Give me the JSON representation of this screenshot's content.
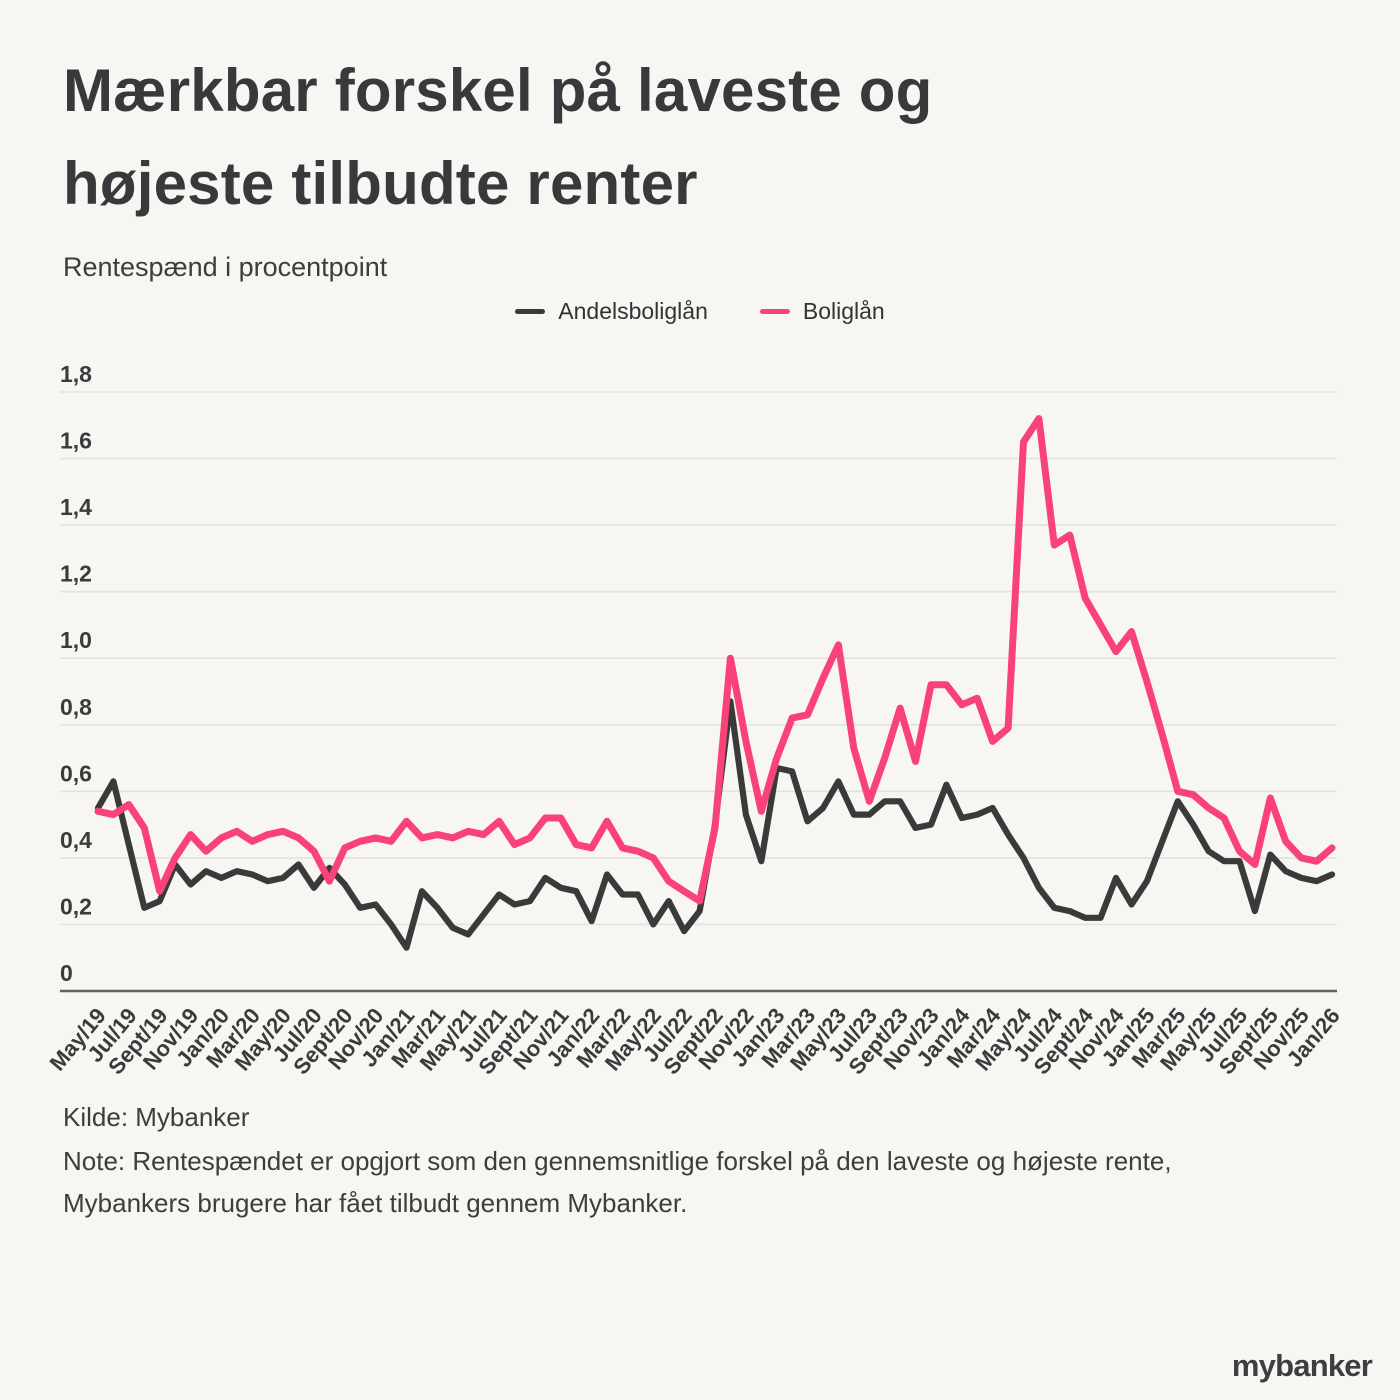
{
  "header": {
    "title_line1": "Mærkbar forskel på laveste og",
    "title_line2": "højeste tilbudte renter",
    "subtitle": "Rentespænd i procentpoint"
  },
  "legend": {
    "items": [
      {
        "label": "Andelsboliglån",
        "color": "#3a3a3a"
      },
      {
        "label": "Boliglån",
        "color": "#f94278"
      }
    ]
  },
  "chart_data": {
    "type": "line",
    "title": "Rentespænd i procentpoint",
    "x_frequency": "monthly",
    "x_tick_labels": [
      "May/19",
      "Jul/19",
      "Sept/19",
      "Nov/19",
      "Jan/20",
      "Mar/20",
      "May/20",
      "Jul/20",
      "Sept/20",
      "Nov/20",
      "Jan/21",
      "Mar/21",
      "May/21",
      "Jul/21",
      "Sept/21",
      "Nov/21",
      "Jan/22",
      "Mar/22",
      "May/22",
      "Jul/22",
      "Sept/22",
      "Nov/22",
      "Jan/23",
      "Mar/23",
      "May/23",
      "Jul/23",
      "Sept/23",
      "Nov/23",
      "Jan/24",
      "Mar/24",
      "May/24",
      "Jul/24",
      "Sept/24",
      "Nov/24",
      "Jan/25",
      "Mar/25",
      "May/25",
      "Jul/25",
      "Sept/25",
      "Nov/25",
      "Jan/26"
    ],
    "y_ticks": [
      "0",
      "0,2",
      "0,4",
      "0,6",
      "0,8",
      "1,0",
      "1,2",
      "1,4",
      "1,6",
      "1,8"
    ],
    "ylim": [
      0,
      1.8
    ],
    "grid": true,
    "legend_position": "top-center",
    "series": [
      {
        "name": "Andelsboliglån",
        "color": "#3a3a3a",
        "values": [
          0.55,
          0.63,
          0.44,
          0.25,
          0.27,
          0.38,
          0.32,
          0.36,
          0.34,
          0.36,
          0.35,
          0.33,
          0.34,
          0.38,
          0.31,
          0.37,
          0.32,
          0.25,
          0.26,
          0.2,
          0.13,
          0.3,
          0.25,
          0.19,
          0.17,
          0.23,
          0.29,
          0.26,
          0.27,
          0.34,
          0.31,
          0.3,
          0.21,
          0.35,
          0.29,
          0.29,
          0.2,
          0.27,
          0.18,
          0.24,
          0.5,
          0.87,
          0.53,
          0.39,
          0.67,
          0.66,
          0.51,
          0.55,
          0.63,
          0.53,
          0.53,
          0.57,
          0.57,
          0.49,
          0.5,
          0.62,
          0.52,
          0.53,
          0.55,
          0.47,
          0.4,
          0.31,
          0.25,
          0.24,
          0.22,
          0.22,
          0.34,
          0.26,
          0.33,
          0.45,
          0.57,
          0.5,
          0.42,
          0.39,
          0.39,
          0.24,
          0.41,
          0.36,
          0.34,
          0.33,
          0.35
        ]
      },
      {
        "name": "Boliglån",
        "color": "#f94278",
        "values": [
          0.54,
          0.53,
          0.56,
          0.49,
          0.3,
          0.4,
          0.47,
          0.42,
          0.46,
          0.48,
          0.45,
          0.47,
          0.48,
          0.46,
          0.42,
          0.33,
          0.43,
          0.45,
          0.46,
          0.45,
          0.51,
          0.46,
          0.47,
          0.46,
          0.48,
          0.47,
          0.51,
          0.44,
          0.46,
          0.52,
          0.52,
          0.44,
          0.43,
          0.51,
          0.43,
          0.42,
          0.4,
          0.33,
          0.3,
          0.27,
          0.49,
          1.0,
          0.75,
          0.54,
          0.7,
          0.82,
          0.83,
          0.94,
          1.04,
          0.73,
          0.57,
          0.7,
          0.85,
          0.69,
          0.92,
          0.92,
          0.86,
          0.88,
          0.75,
          0.79,
          1.65,
          1.72,
          1.34,
          1.37,
          1.18,
          1.1,
          1.02,
          1.08,
          0.93,
          0.77,
          0.6,
          0.59,
          0.55,
          0.52,
          0.42,
          0.38,
          0.58,
          0.45,
          0.4,
          0.39,
          0.43
        ]
      }
    ]
  },
  "footer": {
    "source": "Kilde: Mybanker",
    "note_line1": "Note: Rentespændet er opgjort som den gennemsnitlige forskel på den laveste og højeste rente,",
    "note_line2": "Mybankers brugere har fået tilbudt gennem Mybanker."
  },
  "branding": {
    "logo_text": "mybanker"
  },
  "colors": {
    "background": "#f7f6f3",
    "grid": "#e3e2df",
    "zero_axis": "#636363",
    "text": "#3b3b3b",
    "line_dark": "#3a3a3a",
    "line_pink": "#f94278"
  }
}
